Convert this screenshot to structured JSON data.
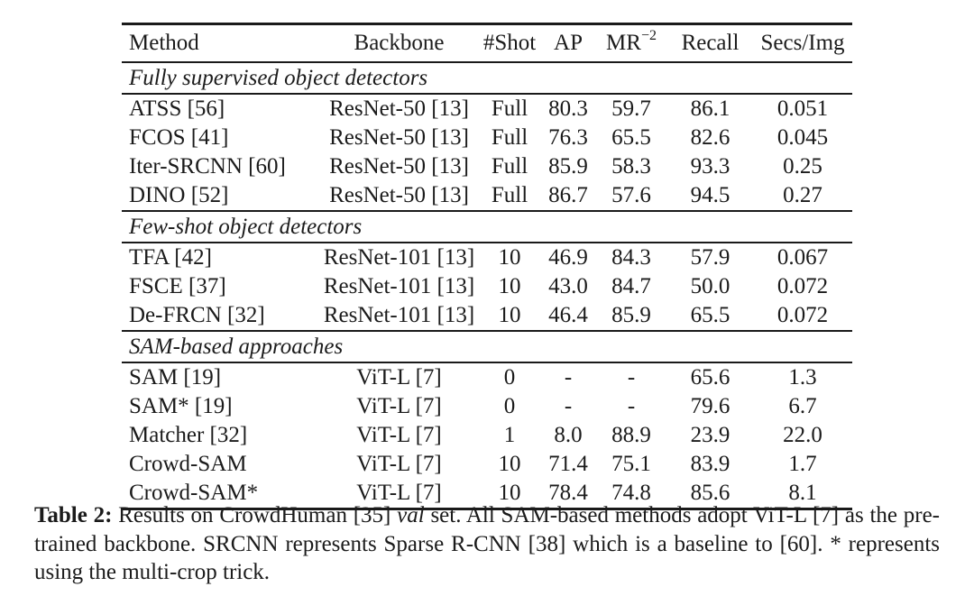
{
  "page": {
    "background_color": "#ffffff",
    "text_color": "#1b1b1b",
    "rule_color": "#1a1a1a"
  },
  "table": {
    "columns": [
      {
        "key": "method",
        "label": "Method"
      },
      {
        "key": "backbone",
        "label": "Backbone"
      },
      {
        "key": "shot",
        "label": "#Shot"
      },
      {
        "key": "ap",
        "label": "AP"
      },
      {
        "key": "mr2",
        "label": "MR",
        "sup": "−2"
      },
      {
        "key": "recall",
        "label": "Recall"
      },
      {
        "key": "secs",
        "label": "Secs/Img"
      }
    ],
    "sections": [
      {
        "title": "Fully supervised object detectors",
        "rows": [
          {
            "cells": [
              "ATSS [56]",
              "ResNet-50 [13]",
              "Full",
              "80.3",
              "59.7",
              "86.1",
              "0.051"
            ]
          },
          {
            "cells": [
              "FCOS [41]",
              "ResNet-50 [13]",
              "Full",
              "76.3",
              "65.5",
              "82.6",
              "0.045"
            ]
          },
          {
            "cells": [
              "Iter-SRCNN [60]",
              "ResNet-50 [13]",
              "Full",
              "85.9",
              "58.3",
              "93.3",
              "0.25"
            ]
          },
          {
            "cells": [
              "DINO [52]",
              "ResNet-50 [13]",
              "Full",
              "86.7",
              "57.6",
              "94.5",
              "0.27"
            ]
          }
        ]
      },
      {
        "title": "Few-shot object detectors",
        "rows": [
          {
            "cells": [
              "TFA [42]",
              "ResNet-101 [13]",
              "10",
              "46.9",
              "84.3",
              "57.9",
              "0.067"
            ]
          },
          {
            "cells": [
              "FSCE [37]",
              "ResNet-101 [13]",
              "10",
              "43.0",
              "84.7",
              "50.0",
              "0.072"
            ]
          },
          {
            "cells": [
              "De-FRCN [32]",
              "ResNet-101 [13]",
              "10",
              "46.4",
              "85.9",
              "65.5",
              "0.072"
            ]
          }
        ]
      },
      {
        "title": "SAM-based approaches",
        "rows": [
          {
            "cells": [
              "SAM [19]",
              "ViT-L [7]",
              "0",
              "-",
              "-",
              "65.6",
              "1.3"
            ]
          },
          {
            "cells": [
              "SAM* [19]",
              "ViT-L [7]",
              "0",
              "-",
              "-",
              "79.6",
              "6.7"
            ]
          },
          {
            "cells": [
              "Matcher [32]",
              "ViT-L [7]",
              "1",
              "8.0",
              "88.9",
              "23.9",
              "22.0"
            ]
          },
          {
            "cells": [
              "Crowd-SAM",
              "ViT-L [7]",
              "10",
              "71.4",
              "75.1",
              "83.9",
              "1.7"
            ]
          },
          {
            "cells": [
              "Crowd-SAM*",
              "ViT-L [7]",
              "10",
              "78.4",
              "74.8",
              "85.6",
              "8.1"
            ]
          }
        ]
      }
    ]
  },
  "caption": {
    "runs": [
      {
        "style": "bold",
        "text": "Table 2:"
      },
      {
        "style": "normal",
        "text": " Results on CrowdHuman [35] "
      },
      {
        "style": "italic",
        "text": "val"
      },
      {
        "style": "normal",
        "text": " set. All SAM-based methods adopt ViT-L [7] as the pre-trained backbone. SRCNN represents Sparse R-CNN [38] which is a baseline to [60]. * represents using the multi-crop trick."
      }
    ]
  }
}
